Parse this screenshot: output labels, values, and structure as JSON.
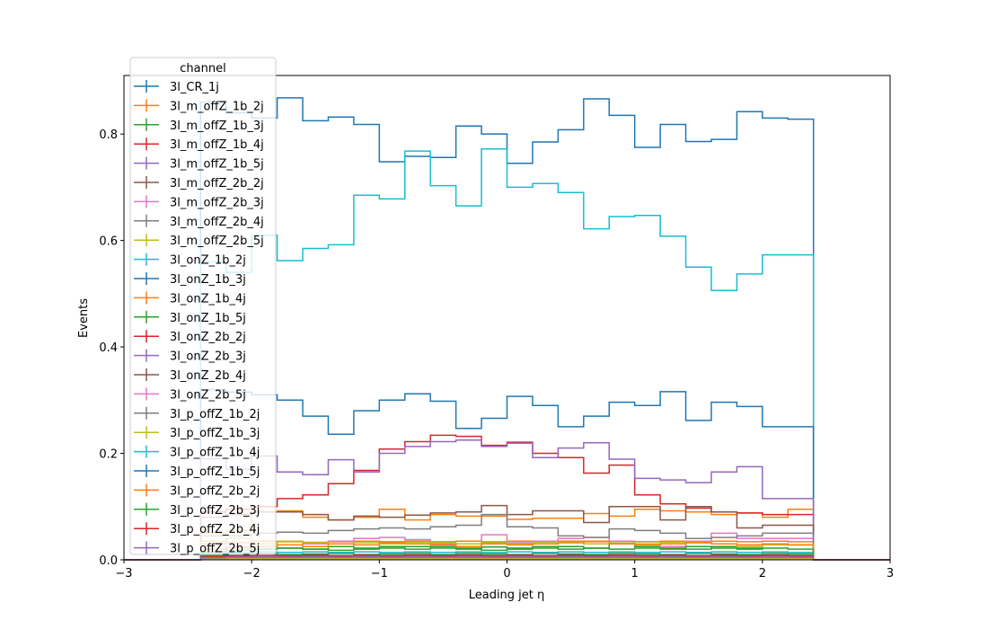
{
  "chart_data": {
    "type": "step-histogram",
    "xlabel": "Leading jet  η",
    "ylabel": "Events",
    "xlim": [
      -3,
      3
    ],
    "ylim": [
      0,
      0.91
    ],
    "x_ticks": [
      -3,
      -2,
      -1,
      0,
      1,
      2,
      3
    ],
    "x_tick_labels": [
      "−3",
      "−2",
      "−1",
      "0",
      "1",
      "2",
      "3"
    ],
    "y_ticks": [
      0,
      0.2,
      0.4,
      0.6,
      0.8
    ],
    "y_tick_labels": [
      "0.0",
      "0.2",
      "0.4",
      "0.6",
      "0.8"
    ],
    "grid": false,
    "legend": {
      "title": "channel",
      "placement": "upper-left"
    },
    "bin_edges": [
      -2.4,
      -2.2,
      -2.0,
      -1.8,
      -1.6,
      -1.4,
      -1.2,
      -1.0,
      -0.8,
      -0.6,
      -0.4,
      -0.2,
      0.0,
      0.2,
      0.4,
      0.6,
      0.8,
      1.0,
      1.2,
      1.4,
      1.6,
      1.8,
      2.0,
      2.2,
      2.4
    ],
    "series": [
      {
        "name": "3l_CR_1j",
        "color": "#1f77b4",
        "values": [
          0.86,
          0.84,
          0.83,
          0.868,
          0.825,
          0.832,
          0.818,
          0.748,
          0.758,
          0.756,
          0.815,
          0.8,
          0.745,
          0.785,
          0.808,
          0.866,
          0.835,
          0.775,
          0.818,
          0.786,
          0.79,
          0.842,
          0.83,
          0.828
        ]
      },
      {
        "name": "3l_m_offZ_1b_2j",
        "color": "#ff7f0e",
        "values": [
          0.05,
          0.055,
          0.09,
          0.092,
          0.08,
          0.075,
          0.08,
          0.095,
          0.075,
          0.085,
          0.082,
          0.082,
          0.076,
          0.078,
          0.078,
          0.087,
          0.082,
          0.095,
          0.092,
          0.09,
          0.085,
          0.088,
          0.08,
          0.095
        ]
      },
      {
        "name": "3l_m_offZ_1b_3j",
        "color": "#2ca02c",
        "values": [
          0.008,
          0.01,
          0.012,
          0.01,
          0.011,
          0.012,
          0.01,
          0.011,
          0.012,
          0.01,
          0.012,
          0.011,
          0.01,
          0.012,
          0.011,
          0.01,
          0.012,
          0.011,
          0.01,
          0.012,
          0.011,
          0.01,
          0.012,
          0.011
        ]
      },
      {
        "name": "3l_m_offZ_1b_4j",
        "color": "#d62728",
        "values": [
          0.003,
          0.004,
          0.005,
          0.004,
          0.005,
          0.004,
          0.005,
          0.004,
          0.005,
          0.004,
          0.005,
          0.004,
          0.005,
          0.004,
          0.005,
          0.004,
          0.005,
          0.004,
          0.005,
          0.004,
          0.005,
          0.004,
          0.005,
          0.004
        ]
      },
      {
        "name": "3l_m_offZ_1b_5j",
        "color": "#9467bd",
        "values": [
          0.002,
          0.002,
          0.003,
          0.002,
          0.003,
          0.002,
          0.003,
          0.002,
          0.003,
          0.002,
          0.003,
          0.002,
          0.003,
          0.002,
          0.003,
          0.002,
          0.003,
          0.002,
          0.003,
          0.002,
          0.003,
          0.002,
          0.003,
          0.002
        ]
      },
      {
        "name": "3l_m_offZ_2b_2j",
        "color": "#8c564b",
        "values": [
          0.006,
          0.008,
          0.009,
          0.008,
          0.009,
          0.008,
          0.009,
          0.008,
          0.009,
          0.008,
          0.009,
          0.008,
          0.009,
          0.008,
          0.009,
          0.008,
          0.009,
          0.008,
          0.009,
          0.008,
          0.009,
          0.008,
          0.009,
          0.008
        ]
      },
      {
        "name": "3l_m_offZ_2b_3j",
        "color": "#e377c2",
        "values": [
          0.004,
          0.005,
          0.006,
          0.005,
          0.006,
          0.005,
          0.006,
          0.005,
          0.006,
          0.005,
          0.006,
          0.005,
          0.006,
          0.005,
          0.006,
          0.005,
          0.006,
          0.005,
          0.006,
          0.005,
          0.006,
          0.005,
          0.006,
          0.005
        ]
      },
      {
        "name": "3l_m_offZ_2b_4j",
        "color": "#7f7f7f",
        "values": [
          0.003,
          0.004,
          0.004,
          0.004,
          0.004,
          0.004,
          0.004,
          0.004,
          0.004,
          0.004,
          0.004,
          0.004,
          0.004,
          0.004,
          0.004,
          0.004,
          0.004,
          0.004,
          0.004,
          0.004,
          0.004,
          0.004,
          0.004,
          0.004
        ]
      },
      {
        "name": "3l_m_offZ_2b_5j",
        "color": "#bcbd22",
        "values": [
          0.001,
          0.002,
          0.002,
          0.002,
          0.002,
          0.002,
          0.002,
          0.002,
          0.002,
          0.002,
          0.002,
          0.002,
          0.002,
          0.002,
          0.002,
          0.002,
          0.002,
          0.002,
          0.002,
          0.002,
          0.002,
          0.002,
          0.002,
          0.002
        ]
      },
      {
        "name": "3l_onZ_1b_2j",
        "color": "#17becf",
        "values": [
          0.56,
          0.54,
          0.61,
          0.562,
          0.585,
          0.592,
          0.685,
          0.678,
          0.768,
          0.703,
          0.665,
          0.772,
          0.7,
          0.707,
          0.69,
          0.622,
          0.645,
          0.647,
          0.608,
          0.55,
          0.506,
          0.537,
          0.573,
          0.573
        ]
      },
      {
        "name": "3l_onZ_1b_3j",
        "color": "#1f77b4",
        "values": [
          0.32,
          0.315,
          0.31,
          0.3,
          0.27,
          0.236,
          0.28,
          0.3,
          0.312,
          0.298,
          0.247,
          0.266,
          0.307,
          0.29,
          0.25,
          0.27,
          0.296,
          0.29,
          0.316,
          0.262,
          0.296,
          0.288,
          0.25,
          0.25
        ]
      },
      {
        "name": "3l_onZ_1b_4j",
        "color": "#ff7f0e",
        "values": [
          0.03,
          0.032,
          0.035,
          0.034,
          0.033,
          0.034,
          0.035,
          0.034,
          0.035,
          0.034,
          0.035,
          0.034,
          0.035,
          0.034,
          0.035,
          0.034,
          0.035,
          0.034,
          0.035,
          0.034,
          0.035,
          0.034,
          0.035,
          0.034
        ]
      },
      {
        "name": "3l_onZ_1b_5j",
        "color": "#2ca02c",
        "values": [
          0.01,
          0.012,
          0.02,
          0.022,
          0.02,
          0.025,
          0.022,
          0.025,
          0.02,
          0.025,
          0.022,
          0.024,
          0.022,
          0.025,
          0.02,
          0.022,
          0.03,
          0.025,
          0.022,
          0.02,
          0.025,
          0.022,
          0.03,
          0.028
        ]
      },
      {
        "name": "3l_onZ_2b_2j",
        "color": "#d62728",
        "values": [
          0.09,
          0.095,
          0.1,
          0.115,
          0.122,
          0.143,
          0.168,
          0.208,
          0.222,
          0.234,
          0.232,
          0.215,
          0.221,
          0.2,
          0.192,
          0.163,
          0.178,
          0.122,
          0.105,
          0.097,
          0.09,
          0.088,
          0.085,
          0.085
        ]
      },
      {
        "name": "3l_onZ_2b_3j",
        "color": "#9467bd",
        "values": [
          0.19,
          0.17,
          0.195,
          0.165,
          0.16,
          0.188,
          0.165,
          0.2,
          0.213,
          0.222,
          0.225,
          0.213,
          0.219,
          0.192,
          0.21,
          0.22,
          0.189,
          0.153,
          0.15,
          0.145,
          0.165,
          0.175,
          0.115,
          0.115
        ]
      },
      {
        "name": "3l_onZ_2b_4j",
        "color": "#8c564b",
        "values": [
          0.08,
          0.085,
          0.09,
          0.09,
          0.085,
          0.075,
          0.082,
          0.08,
          0.084,
          0.088,
          0.09,
          0.102,
          0.085,
          0.092,
          0.092,
          0.07,
          0.1,
          0.1,
          0.075,
          0.1,
          0.09,
          0.06,
          0.065,
          0.065
        ]
      },
      {
        "name": "3l_onZ_2b_5j",
        "color": "#e377c2",
        "values": [
          0.02,
          0.025,
          0.03,
          0.035,
          0.03,
          0.035,
          0.04,
          0.042,
          0.038,
          0.03,
          0.025,
          0.047,
          0.032,
          0.035,
          0.04,
          0.042,
          0.035,
          0.03,
          0.025,
          0.035,
          0.05,
          0.04,
          0.04,
          0.04
        ]
      },
      {
        "name": "3l_p_offZ_1b_2j",
        "color": "#7f7f7f",
        "values": [
          0.045,
          0.045,
          0.05,
          0.052,
          0.05,
          0.055,
          0.058,
          0.06,
          0.058,
          0.062,
          0.065,
          0.085,
          0.062,
          0.06,
          0.045,
          0.042,
          0.058,
          0.055,
          0.05,
          0.04,
          0.042,
          0.045,
          0.05,
          0.05
        ]
      },
      {
        "name": "3l_p_offZ_1b_3j",
        "color": "#bcbd22",
        "values": [
          0.035,
          0.04,
          0.03,
          0.035,
          0.032,
          0.03,
          0.032,
          0.03,
          0.033,
          0.032,
          0.03,
          0.032,
          0.03,
          0.033,
          0.032,
          0.03,
          0.032,
          0.03,
          0.033,
          0.032,
          0.03,
          0.025,
          0.028,
          0.028
        ]
      },
      {
        "name": "3l_p_offZ_1b_4j",
        "color": "#17becf",
        "values": [
          0.012,
          0.014,
          0.015,
          0.014,
          0.015,
          0.014,
          0.015,
          0.014,
          0.015,
          0.014,
          0.015,
          0.014,
          0.015,
          0.014,
          0.015,
          0.014,
          0.015,
          0.014,
          0.015,
          0.014,
          0.015,
          0.014,
          0.015,
          0.014
        ]
      },
      {
        "name": "3l_p_offZ_1b_5j",
        "color": "#1f77b4",
        "values": [
          0.005,
          0.006,
          0.007,
          0.006,
          0.007,
          0.006,
          0.007,
          0.006,
          0.007,
          0.006,
          0.007,
          0.006,
          0.007,
          0.006,
          0.007,
          0.006,
          0.007,
          0.006,
          0.007,
          0.006,
          0.007,
          0.006,
          0.007,
          0.006
        ]
      },
      {
        "name": "3l_p_offZ_2b_2j",
        "color": "#ff7f0e",
        "values": [
          0.02,
          0.022,
          0.025,
          0.028,
          0.025,
          0.03,
          0.028,
          0.032,
          0.03,
          0.028,
          0.025,
          0.03,
          0.028,
          0.03,
          0.032,
          0.035,
          0.03,
          0.028,
          0.03,
          0.032,
          0.03,
          0.028,
          0.03,
          0.028
        ]
      },
      {
        "name": "3l_p_offZ_2b_3j",
        "color": "#2ca02c",
        "values": [
          0.015,
          0.018,
          0.02,
          0.022,
          0.02,
          0.018,
          0.02,
          0.022,
          0.025,
          0.022,
          0.02,
          0.018,
          0.02,
          0.022,
          0.025,
          0.022,
          0.02,
          0.022,
          0.02,
          0.025,
          0.022,
          0.02,
          0.022,
          0.02
        ]
      },
      {
        "name": "3l_p_offZ_2b_4j",
        "color": "#d62728",
        "values": [
          0.006,
          0.007,
          0.008,
          0.007,
          0.008,
          0.007,
          0.008,
          0.007,
          0.008,
          0.007,
          0.008,
          0.007,
          0.008,
          0.007,
          0.008,
          0.007,
          0.008,
          0.007,
          0.008,
          0.007,
          0.008,
          0.007,
          0.008,
          0.007
        ]
      },
      {
        "name": "3l_p_offZ_2b_5j",
        "color": "#9467bd",
        "values": [
          0.004,
          0.005,
          0.006,
          0.005,
          0.006,
          0.005,
          0.006,
          0.005,
          0.006,
          0.005,
          0.006,
          0.005,
          0.006,
          0.005,
          0.006,
          0.005,
          0.006,
          0.005,
          0.006,
          0.005,
          0.006,
          0.005,
          0.006,
          0.005
        ]
      }
    ]
  }
}
